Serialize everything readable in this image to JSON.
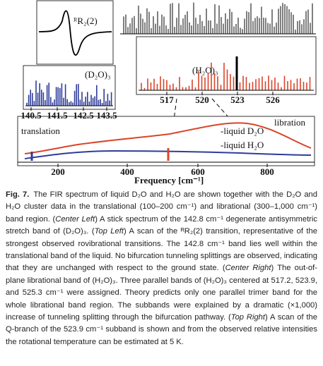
{
  "figure": {
    "top_left": {
      "label": "ᴿR₂(2)"
    },
    "center_left": {
      "label": "(D₂O)₃",
      "ticks": [
        "140.5",
        "141.5",
        "142.5",
        "143.5"
      ]
    },
    "center_right": {
      "label": "(H₂O)₃",
      "ticks": [
        "517",
        "520",
        "523",
        "526"
      ]
    },
    "bottom": {
      "left_label": "translation",
      "right_label": "libration",
      "legend": [
        "-liquid D₂O",
        "-liquid H₂O"
      ],
      "ticks": [
        "200",
        "400",
        "600",
        "800"
      ],
      "x_label": "Frequency [cm⁻¹]"
    }
  },
  "caption": {
    "label": "Fig. 7.",
    "segments": [
      "The FIR spectrum of liquid D₂O and H₂O are shown together with the D₂O and H₂O cluster data in the translational (100–200 cm⁻¹) and librational (300–1,000 cm⁻¹) band region. (",
      {
        "text": "Center Left",
        "style": "italic"
      },
      ") A stick spectrum of the 142.8 cm⁻¹ degenerate antisymmetric stretch band of (D₂O)₃. (",
      {
        "text": "Top Left",
        "style": "italic"
      },
      ") A scan of the ᴿR₂(2) transition, representative of the strongest observed rovibrational transitions. The 142.8 cm⁻¹ band lies well within the translational band of the liquid. No bifurcation tunneling splittings are observed, indicating that they are unchanged with respect to the ground state. (",
      {
        "text": "Center Right",
        "style": "italic"
      },
      ") The out-of-plane librational band of (H₂O)₃. Three parallel bands of (H₂O)₃ centered at 517.2, 523.9, and 525.3 cm⁻¹ were assigned. Theory predicts only one parallel trimer band for the whole librational band region. The subbands were explained by a dramatic (×1,000) increase of tunneling splitting through the bifurcation pathway. (",
      {
        "text": "Top Right",
        "style": "italic"
      },
      ") A scan of the Q-branch of the 523.9 cm⁻¹ subband is shown and from the observed relative intensities the rotational temperature can be estimated at 5 K."
    ]
  }
}
